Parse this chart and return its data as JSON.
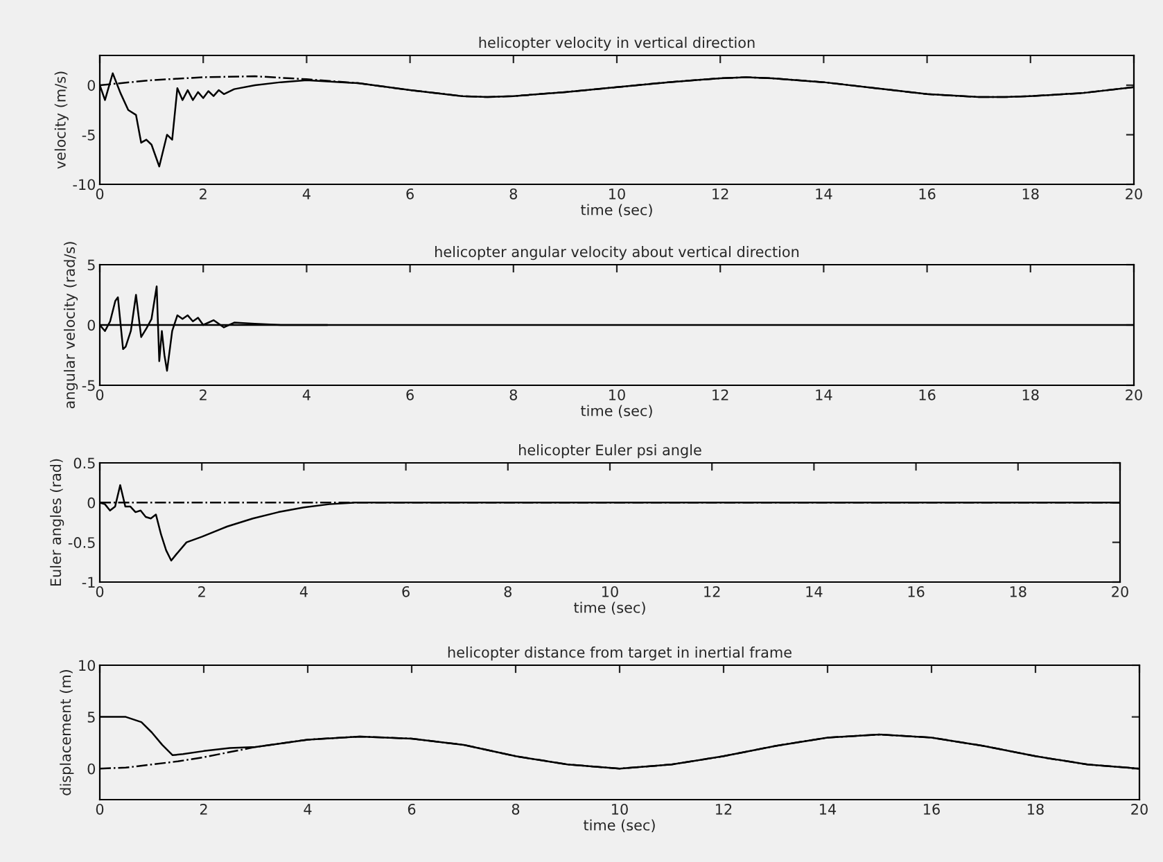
{
  "chart_data": [
    {
      "type": "line",
      "title": "helicopter velocity in vertical direction",
      "xlabel": "time (sec)",
      "ylabel": "velocity (m/s)",
      "xlim": [
        0,
        20
      ],
      "xticks": [
        0,
        2,
        4,
        6,
        8,
        10,
        12,
        14,
        16,
        18,
        20
      ],
      "ylim": [
        -10,
        3
      ],
      "yticks": [
        -10,
        -5,
        0
      ],
      "series": [
        {
          "color": "#000000",
          "line_style": "solid",
          "x": [
            0,
            0.1,
            0.25,
            0.4,
            0.55,
            0.7,
            0.8,
            0.9,
            1.0,
            1.15,
            1.3,
            1.4,
            1.5,
            1.6,
            1.7,
            1.8,
            1.9,
            2.0,
            2.1,
            2.2,
            2.3,
            2.4,
            2.6,
            3,
            3.5,
            4,
            5,
            6,
            7,
            7.5,
            8,
            9,
            10,
            11,
            12,
            12.5,
            13,
            14,
            15,
            16,
            17,
            17.5,
            18,
            19,
            20
          ],
          "values": [
            0,
            -1.5,
            1.2,
            -0.8,
            -2.5,
            -3,
            -5.8,
            -5.5,
            -6,
            -8.2,
            -5,
            -5.5,
            -0.3,
            -1.5,
            -0.5,
            -1.5,
            -0.7,
            -1.3,
            -0.6,
            -1.1,
            -0.5,
            -0.9,
            -0.4,
            0,
            0.3,
            0.5,
            0.2,
            -0.5,
            -1.1,
            -1.2,
            -1.1,
            -0.7,
            -0.2,
            0.3,
            0.7,
            0.8,
            0.7,
            0.3,
            -0.3,
            -0.9,
            -1.2,
            -1.2,
            -1.1,
            -0.8,
            -0.2
          ]
        },
        {
          "color": "#000000",
          "line_style": "dashdot",
          "x": [
            0,
            1,
            2,
            3,
            4,
            5,
            6,
            7,
            7.5,
            8,
            9,
            10,
            11,
            12,
            12.5,
            13,
            14,
            15,
            16,
            17,
            17.5,
            18,
            19,
            20
          ],
          "values": [
            0,
            0.5,
            0.8,
            0.9,
            0.6,
            0.2,
            -0.5,
            -1.1,
            -1.2,
            -1.1,
            -0.7,
            -0.2,
            0.3,
            0.7,
            0.8,
            0.7,
            0.3,
            -0.3,
            -0.9,
            -1.2,
            -1.2,
            -1.1,
            -0.8,
            -0.2
          ]
        }
      ]
    },
    {
      "type": "line",
      "title": "helicopter angular velocity about vertical direction",
      "xlabel": "time (sec)",
      "ylabel": "angular velocity (rad/s)",
      "xlim": [
        0,
        20
      ],
      "xticks": [
        0,
        2,
        4,
        6,
        8,
        10,
        12,
        14,
        16,
        18,
        20
      ],
      "ylim": [
        -5,
        5
      ],
      "yticks": [
        -5,
        0,
        5
      ],
      "series": [
        {
          "color": "#000000",
          "line_style": "solid",
          "x": [
            0,
            0.1,
            0.2,
            0.3,
            0.35,
            0.45,
            0.5,
            0.6,
            0.7,
            0.8,
            0.9,
            1.0,
            1.1,
            1.15,
            1.2,
            1.25,
            1.3,
            1.4,
            1.5,
            1.6,
            1.7,
            1.8,
            1.9,
            2.0,
            2.2,
            2.4,
            2.6,
            3,
            3.5,
            4,
            4.4
          ],
          "values": [
            0,
            -0.5,
            0.3,
            2,
            2.3,
            -2,
            -1.8,
            -0.5,
            2.5,
            -1,
            -0.3,
            0.5,
            3.2,
            -3,
            -0.5,
            -2.5,
            -3.8,
            -0.5,
            0.8,
            0.5,
            0.8,
            0.3,
            0.6,
            0,
            0.4,
            -0.2,
            0.2,
            0.1,
            0,
            0,
            0
          ]
        },
        {
          "color": "#000000",
          "line_style": "solid",
          "x": [
            0,
            20
          ],
          "values": [
            0,
            0
          ]
        }
      ]
    },
    {
      "type": "line",
      "title": "helicopter Euler psi angle",
      "xlabel": "time (sec)",
      "ylabel": "Euler angles (rad)",
      "xlim": [
        0,
        20
      ],
      "xticks": [
        0,
        2,
        4,
        6,
        8,
        10,
        12,
        14,
        16,
        18,
        20
      ],
      "ylim": [
        -1,
        0.5
      ],
      "yticks": [
        -1,
        -0.5,
        0,
        0.5
      ],
      "series": [
        {
          "color": "#000000",
          "line_style": "solid",
          "x": [
            0,
            0.1,
            0.2,
            0.3,
            0.4,
            0.5,
            0.6,
            0.7,
            0.8,
            0.9,
            1.0,
            1.1,
            1.2,
            1.3,
            1.4,
            1.5,
            1.7,
            2,
            2.5,
            3,
            3.5,
            4,
            4.5,
            5,
            6,
            20
          ],
          "values": [
            0,
            -0.02,
            -0.1,
            -0.05,
            0.22,
            -0.05,
            -0.05,
            -0.12,
            -0.1,
            -0.18,
            -0.2,
            -0.15,
            -0.4,
            -0.6,
            -0.73,
            -0.65,
            -0.5,
            -0.43,
            -0.3,
            -0.2,
            -0.12,
            -0.06,
            -0.02,
            0,
            0,
            0
          ]
        },
        {
          "color": "#000000",
          "line_style": "dashdot",
          "x": [
            0,
            20
          ],
          "values": [
            0,
            0
          ]
        }
      ]
    },
    {
      "type": "line",
      "title": "helicopter distance from target in inertial frame",
      "xlabel": "time (sec)",
      "ylabel": "displacement (m)",
      "xlim": [
        0,
        20
      ],
      "xticks": [
        0,
        2,
        4,
        6,
        8,
        10,
        12,
        14,
        16,
        18,
        20
      ],
      "ylim": [
        -3,
        10
      ],
      "yticks": [
        0,
        5,
        10
      ],
      "series": [
        {
          "color": "#000000",
          "line_style": "solid",
          "x": [
            0,
            0.5,
            0.8,
            1.0,
            1.2,
            1.4,
            1.6,
            2,
            2.5,
            3,
            4,
            5,
            6,
            7,
            8,
            9,
            10,
            11,
            12,
            13,
            14,
            15,
            16,
            17,
            18,
            19,
            20
          ],
          "values": [
            5,
            5,
            4.5,
            3.5,
            2.3,
            1.3,
            1.4,
            1.7,
            2.0,
            2.1,
            2.8,
            3.1,
            2.9,
            2.3,
            1.2,
            0.4,
            0.0,
            0.4,
            1.2,
            2.2,
            3.0,
            3.3,
            3.0,
            2.2,
            1.2,
            0.4,
            0.0
          ]
        },
        {
          "color": "#000000",
          "line_style": "dashdot",
          "x": [
            0,
            0.5,
            1,
            1.5,
            2,
            3,
            4,
            5,
            6,
            7,
            8,
            9,
            10,
            11,
            12,
            13,
            14,
            15,
            16,
            17,
            18,
            19,
            20
          ],
          "values": [
            0,
            0.1,
            0.4,
            0.7,
            1.1,
            2.1,
            2.8,
            3.1,
            2.9,
            2.3,
            1.2,
            0.4,
            0.0,
            0.4,
            1.2,
            2.2,
            3.0,
            3.3,
            3.0,
            2.2,
            1.2,
            0.4,
            0.0
          ]
        }
      ]
    }
  ]
}
